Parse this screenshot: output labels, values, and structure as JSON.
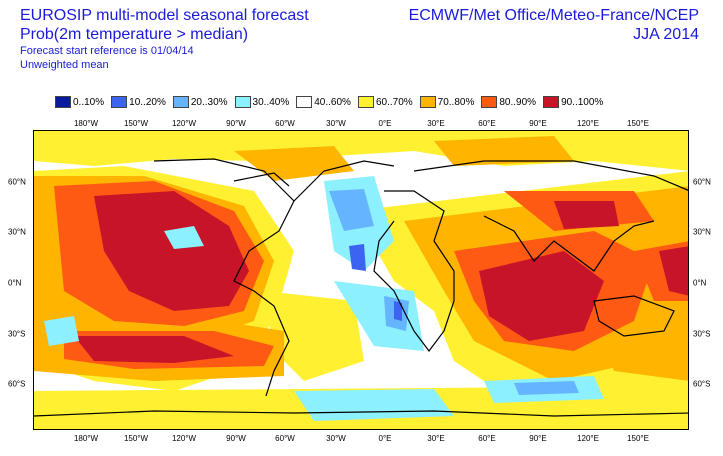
{
  "header": {
    "title": "EUROSIP multi-model seasonal forecast",
    "subtitle": "Prob(2m temperature > median)",
    "forecast_ref": "Forecast start reference is 01/04/14",
    "mean_note": "Unweighted mean",
    "centers": "ECMWF/Met Office/Meteo-France/NCEP",
    "season": "JJA 2014"
  },
  "legend": [
    {
      "label": "0..10%",
      "color": "#0a1aa0"
    },
    {
      "label": "10..20%",
      "color": "#3c64f0"
    },
    {
      "label": "20..30%",
      "color": "#64b4ff"
    },
    {
      "label": "30..40%",
      "color": "#8cf0ff"
    },
    {
      "label": "40..60%",
      "color": "#ffffff"
    },
    {
      "label": "60..70%",
      "color": "#fff032"
    },
    {
      "label": "70..80%",
      "color": "#ffb400"
    },
    {
      "label": "80..90%",
      "color": "#ff5a14"
    },
    {
      "label": "90..100%",
      "color": "#c81428"
    }
  ],
  "map": {
    "lon_labels": [
      "180°W",
      "150°W",
      "120°W",
      "90°W",
      "60°W",
      "30°W",
      "0°E",
      "30°E",
      "60°E",
      "90°E",
      "120°E",
      "150°E"
    ],
    "lat_labels": [
      "60°N",
      "30°N",
      "0°N",
      "30°S",
      "60°S"
    ]
  }
}
